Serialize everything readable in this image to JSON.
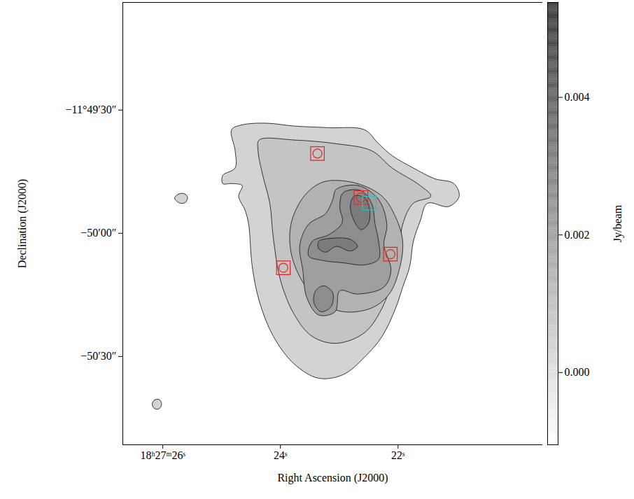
{
  "chart_data": {
    "type": "contour_map",
    "xlabel": "Right Ascension (J2000)",
    "ylabel": "Declination (J2000)",
    "xlim": [
      26.68,
      19.54
    ],
    "ylim": [
      -51.5,
      56.2
    ],
    "xticks": [
      {
        "value": 26,
        "label": "18ʰ27ᵐ26ˢ"
      },
      {
        "value": 24,
        "label": "24ˢ"
      },
      {
        "value": 22,
        "label": "22ˢ"
      }
    ],
    "yticks": [
      {
        "value": 30,
        "label": "−11°49′30″"
      },
      {
        "value": 0,
        "label": "−50′00″"
      },
      {
        "value": -30,
        "label": "−50′30″"
      }
    ],
    "contours": [
      {
        "level": 0.0004,
        "polygons": [
          [
            [
              24.83,
              25.2
            ],
            [
              24.65,
              26.4
            ],
            [
              24.24,
              26.8
            ],
            [
              23.76,
              26.1
            ],
            [
              23.17,
              25.7
            ],
            [
              22.57,
              25.2
            ],
            [
              22.33,
              21.8
            ],
            [
              22.1,
              18.9
            ],
            [
              21.74,
              15.9
            ],
            [
              21.38,
              13.3
            ],
            [
              21.05,
              12.1
            ],
            [
              20.96,
              9.0
            ],
            [
              21.14,
              6.5
            ],
            [
              21.5,
              7.3
            ],
            [
              21.62,
              3.1
            ],
            [
              21.74,
              -2.0
            ],
            [
              21.8,
              -8.0
            ],
            [
              21.92,
              -13.1
            ],
            [
              22.04,
              -18.2
            ],
            [
              22.27,
              -25.1
            ],
            [
              22.57,
              -30.2
            ],
            [
              22.93,
              -34.4
            ],
            [
              23.35,
              -35.3
            ],
            [
              23.76,
              -31.9
            ],
            [
              24.12,
              -25.1
            ],
            [
              24.36,
              -16.5
            ],
            [
              24.48,
              -8.0
            ],
            [
              24.54,
              2.2
            ],
            [
              24.6,
              5.6
            ],
            [
              24.71,
              9.0
            ],
            [
              24.65,
              11.6
            ],
            [
              24.83,
              12.1
            ],
            [
              24.98,
              12.1
            ],
            [
              24.98,
              14.1
            ],
            [
              24.77,
              15.9
            ],
            [
              24.77,
              20.1
            ]
          ],
          [
            [
              25.8,
              8.5
            ],
            [
              25.74,
              9.5
            ],
            [
              25.65,
              9.7
            ],
            [
              25.58,
              8.9
            ],
            [
              25.61,
              7.6
            ],
            [
              25.7,
              7.3
            ]
          ],
          [
            [
              26.18,
              -41.6
            ],
            [
              26.14,
              -40.6
            ],
            [
              26.06,
              -40.5
            ],
            [
              26.02,
              -41.6
            ],
            [
              26.06,
              -42.7
            ],
            [
              26.14,
              -42.7
            ]
          ]
        ]
      },
      {
        "level": 0.0009,
        "polygons": [
          [
            [
              24.36,
              22.7
            ],
            [
              23.76,
              22.7
            ],
            [
              23.05,
              21.8
            ],
            [
              22.45,
              20.1
            ],
            [
              22.1,
              15.9
            ],
            [
              21.62,
              11.6
            ],
            [
              21.44,
              9.0
            ],
            [
              21.74,
              7.3
            ],
            [
              21.92,
              2.2
            ],
            [
              21.98,
              -4.6
            ],
            [
              22.1,
              -11.4
            ],
            [
              22.27,
              -18.2
            ],
            [
              22.57,
              -24.2
            ],
            [
              23.05,
              -26.8
            ],
            [
              23.46,
              -25.1
            ],
            [
              23.76,
              -19.9
            ],
            [
              24.0,
              -11.4
            ],
            [
              24.12,
              -1.2
            ],
            [
              24.18,
              7.3
            ],
            [
              24.3,
              14.1
            ],
            [
              24.38,
              20.1
            ]
          ]
        ]
      },
      {
        "level": 0.0015,
        "polygons": [
          [
            [
              23.17,
              12.8
            ],
            [
              22.69,
              12.1
            ],
            [
              22.27,
              9.0
            ],
            [
              22.04,
              3.9
            ],
            [
              21.92,
              -2.0
            ],
            [
              21.98,
              -8.9
            ],
            [
              22.15,
              -14.8
            ],
            [
              22.45,
              -18.2
            ],
            [
              22.93,
              -19.1
            ],
            [
              23.35,
              -16.5
            ],
            [
              23.64,
              -11.4
            ],
            [
              23.82,
              -4.6
            ],
            [
              23.82,
              2.2
            ],
            [
              23.64,
              8.2
            ],
            [
              23.4,
              11.6
            ]
          ]
        ]
      },
      {
        "level": 0.0021,
        "polygons": [
          [
            [
              23.05,
              10.7
            ],
            [
              22.67,
              11.6
            ],
            [
              22.33,
              8.2
            ],
            [
              22.19,
              2.2
            ],
            [
              22.24,
              -2.9
            ],
            [
              22.12,
              -8.9
            ],
            [
              22.24,
              -13.1
            ],
            [
              22.69,
              -14.8
            ],
            [
              22.99,
              -14.0
            ],
            [
              23.07,
              -19.1
            ],
            [
              23.35,
              -19.9
            ],
            [
              23.55,
              -15.7
            ],
            [
              23.62,
              -8.9
            ],
            [
              23.67,
              -2.9
            ],
            [
              23.52,
              2.2
            ],
            [
              23.23,
              4.8
            ],
            [
              23.11,
              8.2
            ]
          ]
        ]
      },
      {
        "level": 0.0027,
        "polygons": [
          [
            [
              22.93,
              9.9
            ],
            [
              22.63,
              10.4
            ],
            [
              22.45,
              7.3
            ],
            [
              22.39,
              2.2
            ],
            [
              22.33,
              -2.0
            ],
            [
              22.33,
              -6.3
            ],
            [
              22.57,
              -7.7
            ],
            [
              22.93,
              -7.2
            ],
            [
              23.29,
              -6.6
            ],
            [
              23.52,
              -5.5
            ],
            [
              23.46,
              -2.0
            ],
            [
              23.17,
              -0.3
            ],
            [
              22.95,
              2.6
            ],
            [
              22.99,
              6.5
            ]
          ],
          [
            [
              23.26,
              -12.8
            ],
            [
              23.11,
              -14.5
            ],
            [
              23.14,
              -17.9
            ],
            [
              23.31,
              -19.1
            ],
            [
              23.43,
              -16.9
            ],
            [
              23.4,
              -14.0
            ]
          ]
        ]
      },
      {
        "level": 0.0033,
        "polygons": [
          [
            [
              22.75,
              9.0
            ],
            [
              22.57,
              8.7
            ],
            [
              22.48,
              5.6
            ],
            [
              22.51,
              2.2
            ],
            [
              22.63,
              0.9
            ],
            [
              22.75,
              3.1
            ],
            [
              22.81,
              6.5
            ]
          ],
          [
            [
              23.35,
              -2.0
            ],
            [
              23.11,
              -1.2
            ],
            [
              22.81,
              -1.5
            ],
            [
              22.69,
              -3.2
            ],
            [
              22.81,
              -4.3
            ],
            [
              23.05,
              -3.2
            ],
            [
              23.23,
              -4.6
            ],
            [
              23.35,
              -3.7
            ]
          ]
        ]
      }
    ],
    "markers": [
      {
        "color": "#e8251f",
        "marker": "circled-square",
        "x": [
          23.37,
          22.63,
          22.13,
          23.95
        ],
        "y": [
          19.4,
          8.7,
          -5.1,
          -8.4
        ]
      },
      {
        "color": "#1fc8c8",
        "marker": "square",
        "x": [
          22.49
        ],
        "y": [
          7.3
        ]
      }
    ],
    "colorbar": {
      "label": "Jy/beam",
      "range": [
        -0.00105,
        0.00538
      ],
      "ticks": [
        {
          "value": 0,
          "label": "0.000"
        },
        {
          "value": 0.002,
          "label": "0.002"
        },
        {
          "value": 0.004,
          "label": "0.004"
        }
      ],
      "colors": [
        "#ffffff",
        "#3c3c3c"
      ]
    }
  }
}
